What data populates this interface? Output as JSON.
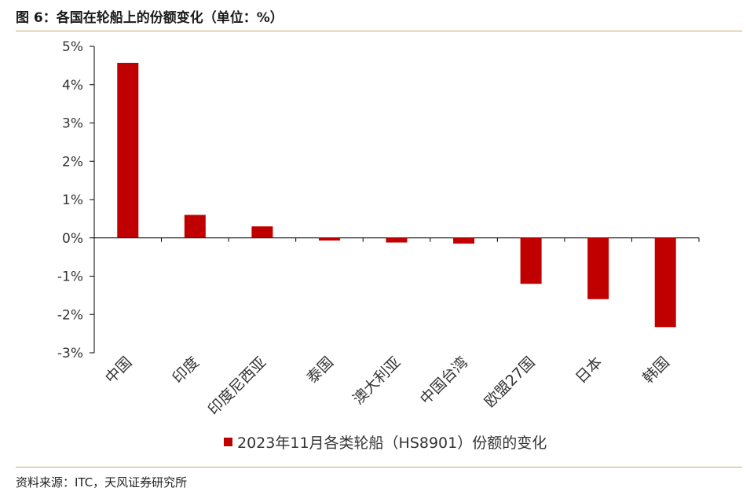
{
  "figure_title": "图 6：各国在轮船上的份额变化（单位：%）",
  "source_note": "资料来源：ITC，天风证券研究所",
  "colors": {
    "bar": "#c00000",
    "axis": "#000000",
    "rule": "#c8a86b"
  },
  "chart_data": {
    "type": "bar",
    "categories": [
      "中国",
      "印度",
      "印度尼西亚",
      "泰国",
      "澳大利亚",
      "中国台湾",
      "欧盟27国",
      "日本",
      "韩国"
    ],
    "series": [
      {
        "name": "2023年11月各类轮船（HS8901）份额的变化",
        "values": [
          4.57,
          0.6,
          0.3,
          -0.07,
          -0.12,
          -0.15,
          -1.2,
          -1.6,
          -2.33
        ]
      }
    ],
    "y_tick_labels": [
      "5%",
      "4%",
      "3%",
      "2%",
      "1%",
      "0%",
      "-1%",
      "-2%",
      "-3%"
    ],
    "ylim": [
      -3,
      5
    ],
    "grid": false,
    "legend_position": "bottom"
  }
}
